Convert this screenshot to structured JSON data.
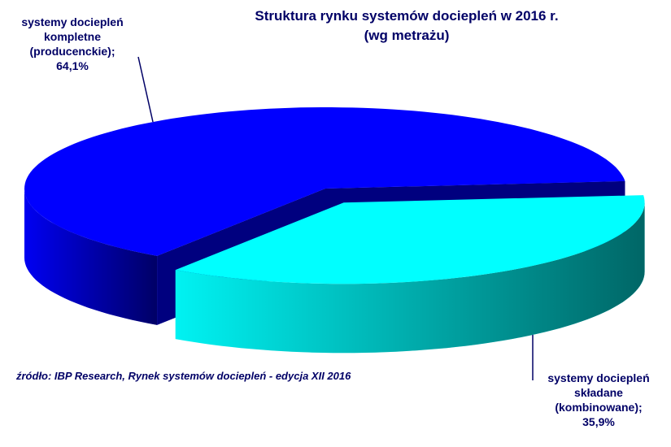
{
  "chart_data": {
    "type": "pie3d",
    "title": "Struktura rynku systemów dociepleń w 2016 r.",
    "subtitle": "(wg metrażu)",
    "categories": [
      "systemy dociepleń kompletne (producenckie);",
      "systemy dociepleń składane (kombinowane);"
    ],
    "values": [
      64.1,
      35.9
    ],
    "value_labels": [
      "64,1%",
      "35,9%"
    ],
    "colors": [
      "#0000ff",
      "#00ffff"
    ],
    "source": "źródło: IBP Research, Rynek systemów dociepleń - edycja XII 2016"
  }
}
